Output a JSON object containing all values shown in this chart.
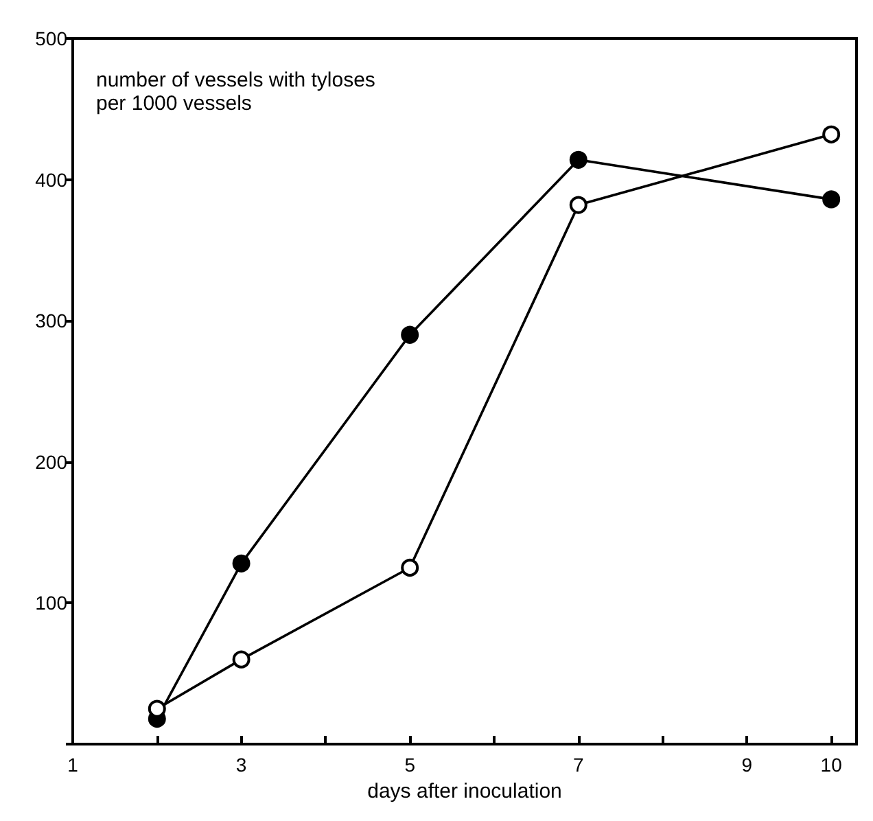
{
  "chart_data": {
    "type": "line",
    "ylabel": "number of vessels with tyloses\nper 1000 vessels",
    "xlabel": "days after inoculation",
    "x": [
      2,
      3,
      5,
      7,
      10
    ],
    "series": [
      {
        "color": "#000000",
        "values": [
          18,
          128,
          290,
          414,
          386
        ]
      },
      {
        "color": "#000000",
        "values": [
          25,
          60,
          125,
          382,
          432
        ]
      }
    ],
    "xlim": [
      1,
      10.3
    ],
    "xticks": [
      1,
      {
        "value": 2,
        "label": null
      },
      3,
      {
        "value": 4,
        "label": null
      },
      5,
      {
        "value": 6,
        "label": null
      },
      7,
      {
        "value": 8,
        "label": null
      },
      9,
      10
    ],
    "ylim": [
      0,
      500
    ],
    "yticks": [
      {
        "value": 0,
        "label": null
      },
      100,
      200,
      300,
      400,
      500
    ],
    "grid": false,
    "marker": "circle",
    "line_style": "solid"
  }
}
